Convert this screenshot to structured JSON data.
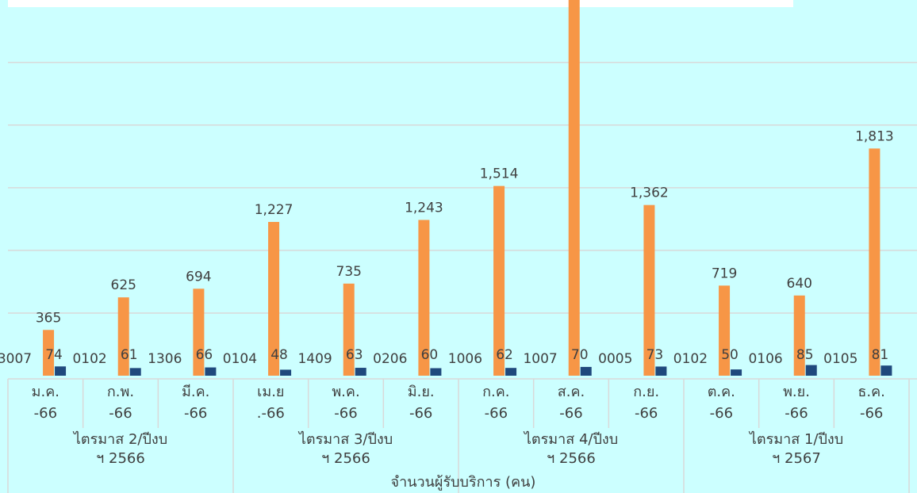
{
  "chart_data": {
    "type": "bar",
    "xlabel": "จำนวนผู้รับบริการ (คน)",
    "categories": [
      {
        "line1": "ม.ค.",
        "line2": "-66"
      },
      {
        "line1": "ก.พ.",
        "line2": "-66"
      },
      {
        "line1": "มี.ค.",
        "line2": "-66"
      },
      {
        "line1": "เม.ย",
        "line2": ".-66"
      },
      {
        "line1": "พ.ค.",
        "line2": "-66"
      },
      {
        "line1": "มิ.ย.",
        "line2": "-66"
      },
      {
        "line1": "ก.ค.",
        "line2": "-66"
      },
      {
        "line1": "ส.ค.",
        "line2": "-66"
      },
      {
        "line1": "ก.ย.",
        "line2": "-66"
      },
      {
        "line1": "ต.ค.",
        "line2": "-66"
      },
      {
        "line1": "พ.ย.",
        "line2": "-66"
      },
      {
        "line1": "ธ.ค.",
        "line2": "-66"
      }
    ],
    "groups": [
      {
        "line1": "ไตรมาส 2/ปีงบ",
        "line2": "ฯ 2566"
      },
      {
        "line1": "ไตรมาส 3/ปีงบ",
        "line2": "ฯ 2566"
      },
      {
        "line1": "ไตรมาส 4/ปีงบ",
        "line2": "ฯ 2566"
      },
      {
        "line1": "ไตรมาส 1/ปีงบ",
        "line2": "ฯ 2567"
      }
    ],
    "series": [
      {
        "color": "#f79646",
        "values": [
          0,
          0,
          0,
          0,
          0,
          0,
          0,
          0,
          0,
          0,
          0,
          0
        ],
        "labels": [
          "3007",
          "0102",
          "1306",
          "0104",
          "1409",
          "0206",
          "1006",
          "1007",
          "0005",
          "0102",
          "0106",
          "0105"
        ]
      },
      {
        "color": "#f79646",
        "values": [
          365,
          625,
          694,
          1227,
          735,
          1243,
          1514,
          3050,
          1362,
          719,
          640,
          1813
        ],
        "labels": [
          "365",
          "625",
          "694",
          "1,227",
          "735",
          "1,243",
          "1,514",
          "",
          "1,362",
          "719",
          "640",
          "1,813"
        ]
      },
      {
        "color": "#1f497d",
        "values": [
          74,
          61,
          66,
          48,
          63,
          60,
          62,
          70,
          73,
          50,
          85,
          81
        ],
        "labels": [
          "74",
          "61",
          "66",
          "48",
          "63",
          "60",
          "62",
          "70",
          "73",
          "50",
          "85",
          "81"
        ]
      }
    ],
    "ylim": [
      0,
      3000
    ],
    "grid": true,
    "gridline_values": [
      500,
      1000,
      1500,
      2000,
      2500,
      3000
    ],
    "legend": "none"
  }
}
